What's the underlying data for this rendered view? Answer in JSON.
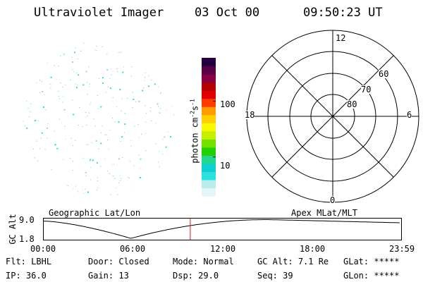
{
  "header": {
    "instrument": "Ultraviolet Imager",
    "date": "03 Oct 00",
    "time": "09:50:23 UT"
  },
  "colorbar": {
    "unit_label": "photon cm",
    "unit_exp_1": "-2",
    "unit_s": "s",
    "unit_exp_2": "-1",
    "scale": "log",
    "range": [
      2,
      600
    ],
    "tick_labels": [
      {
        "value": 100,
        "label": "100"
      },
      {
        "value": 10,
        "label": "10"
      }
    ],
    "colors": [
      "#e6f6f6",
      "#b8ecec",
      "#2ce0e0",
      "#10cfd2",
      "#22d690",
      "#20d000",
      "#74e000",
      "#c4f000",
      "#f8f800",
      "#ffd000",
      "#ff9c00",
      "#ff3a00",
      "#e00000",
      "#b40000",
      "#880044",
      "#5a0048",
      "#240040"
    ]
  },
  "polar_grid": {
    "mlt_labels": {
      "top": "12",
      "bottom": "0",
      "left": "18",
      "right": "6"
    },
    "lat_labels": [
      "60",
      "70",
      "80"
    ]
  },
  "timeline": {
    "ylabel": "GC Alt",
    "y_ticks": [
      "9.0",
      "1.8"
    ],
    "left_title": "Geographic Lat/Lon",
    "right_title": "Apex MLat/MLT",
    "x_ticks": [
      "00:00",
      "06:00",
      "12:00",
      "18:00",
      "23:59"
    ],
    "current_time_hours": 9.84
  },
  "status": {
    "filter": {
      "label": "Flt:",
      "value": "LBHL"
    },
    "ip": {
      "label": "IP:",
      "value": "36.0"
    },
    "door": {
      "label": "Door:",
      "value": "Closed"
    },
    "gain": {
      "label": "Gain:",
      "value": "13"
    },
    "mode": {
      "label": "Mode:",
      "value": "Normal"
    },
    "dsp": {
      "label": "Dsp:",
      "value": "29.0"
    },
    "gc_alt": {
      "label": "GC Alt:",
      "value": "7.1 Re"
    },
    "seq": {
      "label": "Seq:",
      "value": "39"
    },
    "glat": {
      "label": "GLat:",
      "value": "*****"
    },
    "glon": {
      "label": "GLon:",
      "value": "*****"
    }
  },
  "style": {
    "speckle_color": "#3cd6d6",
    "marker_color": "#d02020"
  }
}
